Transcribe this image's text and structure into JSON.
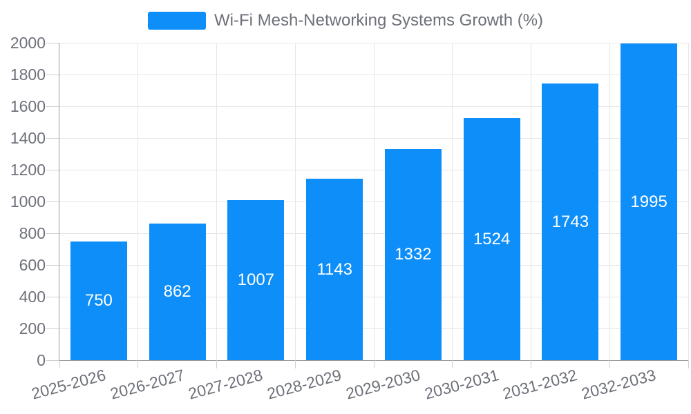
{
  "chart_data": {
    "type": "bar",
    "legend_label": "Wi-Fi Mesh-Networking Systems Growth (%)",
    "legend_position": "top-center",
    "categories": [
      "2025-2026",
      "2026-2027",
      "2027-2028",
      "2028-2029",
      "2029-2030",
      "2030-2031",
      "2031-2032",
      "2032-2033"
    ],
    "values": [
      750,
      862,
      1007,
      1143,
      1332,
      1524,
      1743,
      1995
    ],
    "yticks": [
      0,
      200,
      400,
      600,
      800,
      1000,
      1200,
      1400,
      1600,
      1800,
      2000
    ],
    "ylim": [
      0,
      2000
    ],
    "ytick_step": 200,
    "xlabel": "",
    "ylabel": "",
    "grid": {
      "horizontal": true,
      "vertical": true
    },
    "x_label_rotation_deg": -15,
    "bar_label_position": "center-inside",
    "colors": {
      "bar": "#0d8ef9",
      "bar_label": "#ffffff",
      "axis": "#999999",
      "grid": "#e6e6e6",
      "tick": "#cfcfcf",
      "text": "#6e7079",
      "background": "#ffffff"
    }
  }
}
